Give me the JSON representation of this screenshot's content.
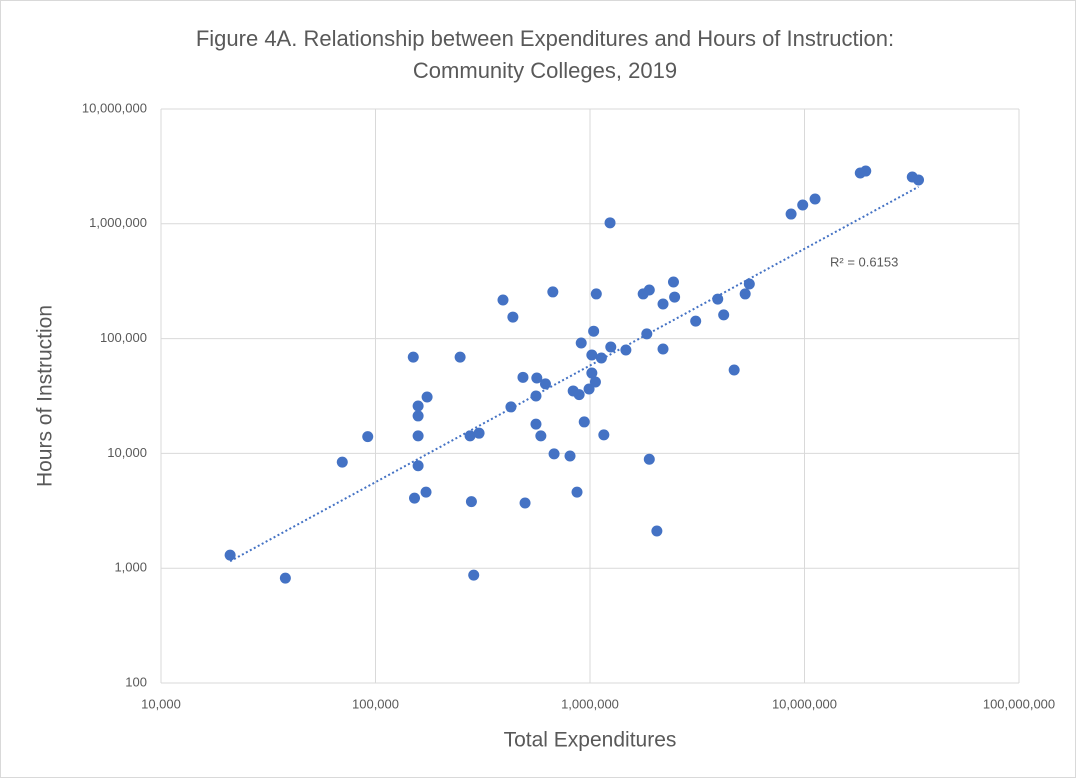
{
  "chart_data": {
    "type": "scatter",
    "title": [
      "Figure 4A. Relationship between Expenditures and Hours of Instruction:",
      "Community Colleges, 2019"
    ],
    "x_label": "Total Expenditures",
    "y_label": "Hours of Instruction",
    "annotation": "R² = 0.6153",
    "x_scale": "log",
    "y_scale": "log",
    "grid": true,
    "color": "#4472c4",
    "xlim": [
      10000,
      100000000
    ],
    "ylim": [
      100,
      10000000
    ],
    "xticks": [
      {
        "value": 10000,
        "label": "10,000"
      },
      {
        "value": 100000,
        "label": "100,000"
      },
      {
        "value": 1000000,
        "label": "1,000,000"
      },
      {
        "value": 10000000,
        "label": "10,000,000"
      },
      {
        "value": 100000000,
        "label": "100,000,000"
      }
    ],
    "yticks": [
      100,
      {
        "value": 1000,
        "label": "1,000"
      },
      {
        "value": 10000,
        "label": "10,000"
      },
      {
        "value": 100000,
        "label": "100,000"
      },
      {
        "value": 1000000,
        "label": "1,000,000"
      },
      {
        "value": 10000000,
        "label": "10,000,000"
      }
    ],
    "x": [
      21000,
      38000,
      70000,
      92000,
      150000,
      158000,
      158000,
      158000,
      158000,
      152000,
      174000,
      172000,
      248000,
      276000,
      304000,
      280000,
      287000,
      393000,
      437000,
      428000,
      487000,
      498000,
      671000,
      565000,
      620000,
      560000,
      560000,
      590000,
      680000,
      807000,
      835000,
      890000,
      910000,
      940000,
      870000,
      990000,
      1020000,
      1020000,
      1040000,
      1060000,
      1070000,
      1130000,
      1160000,
      1240000,
      1250000,
      1470000,
      1770000,
      1890000,
      1840000,
      1890000,
      2050000,
      2190000,
      2190000,
      2450000,
      2480000,
      3110000,
      3940000,
      4200000,
      4700000,
      5290000,
      5530000,
      8660000,
      9810000,
      11200000,
      18200000,
      19300000,
      31800000,
      34000000
    ],
    "values": [
      1300,
      820,
      8400,
      14000,
      69000,
      25900,
      21200,
      14200,
      7800,
      4080,
      31000,
      4600,
      69000,
      14200,
      15000,
      3800,
      870,
      217000,
      154000,
      25400,
      46000,
      3700,
      255000,
      45400,
      40300,
      31600,
      18000,
      14200,
      9900,
      9500,
      35000,
      32500,
      91600,
      18800,
      4600,
      36400,
      50100,
      72000,
      116000,
      41900,
      245000,
      67800,
      14500,
      1020000,
      84500,
      79600,
      245000,
      265000,
      110000,
      8900,
      2110,
      200000,
      81100,
      311000,
      230000,
      142000,
      221000,
      161000,
      53300,
      245000,
      299000,
      1216000,
      1458000,
      1646000,
      2772000,
      2880000,
      2557000,
      2410000
    ],
    "trendline": {
      "color": "#4472c4",
      "x": [
        21000,
        34000000
      ],
      "y": [
        1150,
        2100000
      ]
    }
  }
}
